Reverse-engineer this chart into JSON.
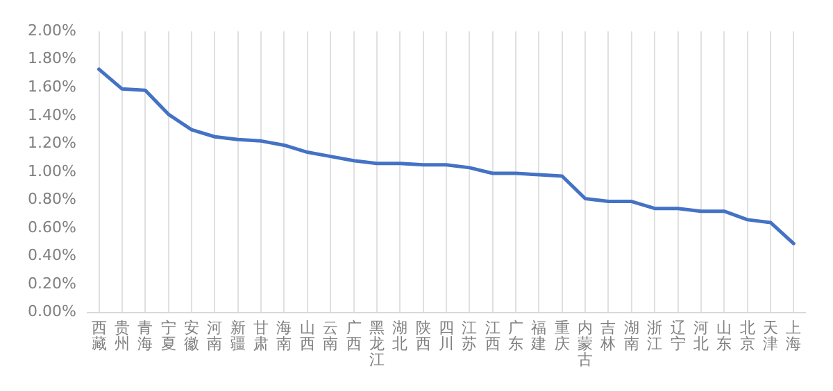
{
  "chart_data": {
    "type": "line",
    "categories": [
      "西藏",
      "贵州",
      "青海",
      "宁夏",
      "安徽",
      "河南",
      "新疆",
      "甘肃",
      "海南",
      "山西",
      "云南",
      "广西",
      "黑龙江",
      "湖北",
      "陕西",
      "四川",
      "江苏",
      "江西",
      "广东",
      "福建",
      "重庆",
      "内蒙古",
      "吉林",
      "湖南",
      "浙江",
      "辽宁",
      "河北",
      "山东",
      "北京",
      "天津",
      "上海"
    ],
    "series": [
      {
        "color": "#4472c4",
        "values": [
          1.73,
          1.59,
          1.58,
          1.41,
          1.3,
          1.25,
          1.23,
          1.22,
          1.19,
          1.14,
          1.11,
          1.08,
          1.06,
          1.06,
          1.05,
          1.05,
          1.03,
          0.99,
          0.99,
          0.98,
          0.97,
          0.81,
          0.79,
          0.79,
          0.74,
          0.74,
          0.72,
          0.72,
          0.66,
          0.64,
          0.49
        ]
      }
    ],
    "ylim": [
      0,
      2
    ],
    "yticks": [
      {
        "value": 0,
        "label": "0.00%"
      },
      {
        "value": 0.2,
        "label": "0.20%"
      },
      {
        "value": 0.4,
        "label": "0.40%"
      },
      {
        "value": 0.6,
        "label": "0.60%"
      },
      {
        "value": 0.8,
        "label": "0.80%"
      },
      {
        "value": 1,
        "label": "1.00%"
      },
      {
        "value": 1.2,
        "label": "1.20%"
      },
      {
        "value": 1.4,
        "label": "1.40%"
      },
      {
        "value": 1.6,
        "label": "1.60%"
      },
      {
        "value": 1.8,
        "label": "1.80%"
      },
      {
        "value": 2,
        "label": "2.00%"
      }
    ],
    "grid": "x",
    "legend": false,
    "marker": "none",
    "line_style": "solid"
  }
}
